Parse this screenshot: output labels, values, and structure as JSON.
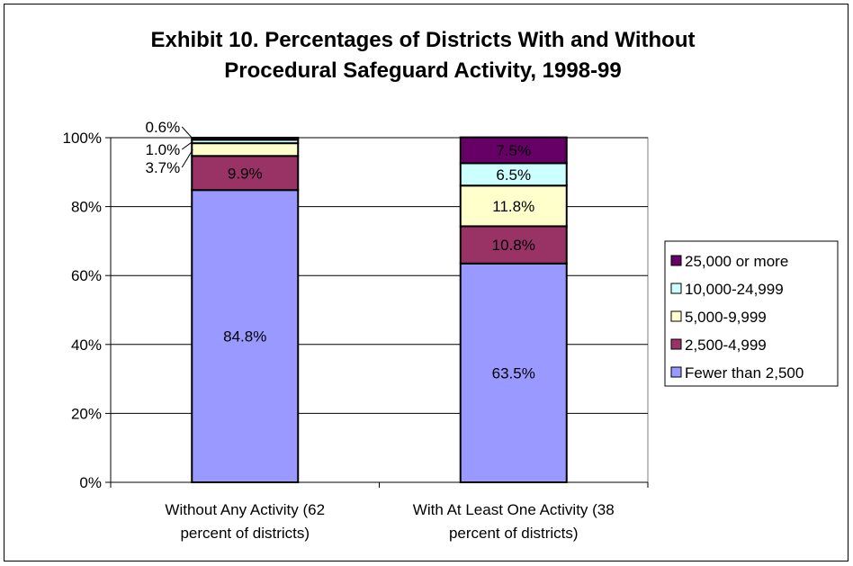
{
  "chart_data": {
    "type": "bar",
    "stacked": true,
    "title_lines": [
      "Exhibit 10. Percentages of Districts With and Without",
      "Procedural Safeguard Activity, 1998-99"
    ],
    "categories": [
      [
        "Without Any Activity (62",
        "percent of districts)"
      ],
      [
        "With At Least One Activity (38",
        "percent of districts)"
      ]
    ],
    "ylim": [
      0,
      100
    ],
    "yticks": [
      0,
      20,
      40,
      60,
      80,
      100
    ],
    "ytick_labels": [
      "0%",
      "20%",
      "40%",
      "60%",
      "80%",
      "100%"
    ],
    "grid": true,
    "legend_position": "right",
    "series": [
      {
        "name": "Fewer than 2,500",
        "color": "#9999ff",
        "values": [
          84.8,
          63.5
        ],
        "labels": [
          "84.8%",
          "63.5%"
        ]
      },
      {
        "name": "2,500-4,999",
        "color": "#993366",
        "values": [
          9.9,
          10.8
        ],
        "labels": [
          "9.9%",
          "10.8%"
        ]
      },
      {
        "name": "5,000-9,999",
        "color": "#ffffcc",
        "values": [
          3.7,
          11.8
        ],
        "labels": [
          "3.7%",
          "11.8%"
        ]
      },
      {
        "name": "10,000-24,999",
        "color": "#ccffff",
        "values": [
          1.0,
          6.5
        ],
        "labels": [
          "1.0%",
          "6.5%"
        ]
      },
      {
        "name": "25,000 or more",
        "color": "#660066",
        "values": [
          0.6,
          7.5
        ],
        "labels": [
          "0.6%",
          "7.5%"
        ]
      }
    ]
  }
}
